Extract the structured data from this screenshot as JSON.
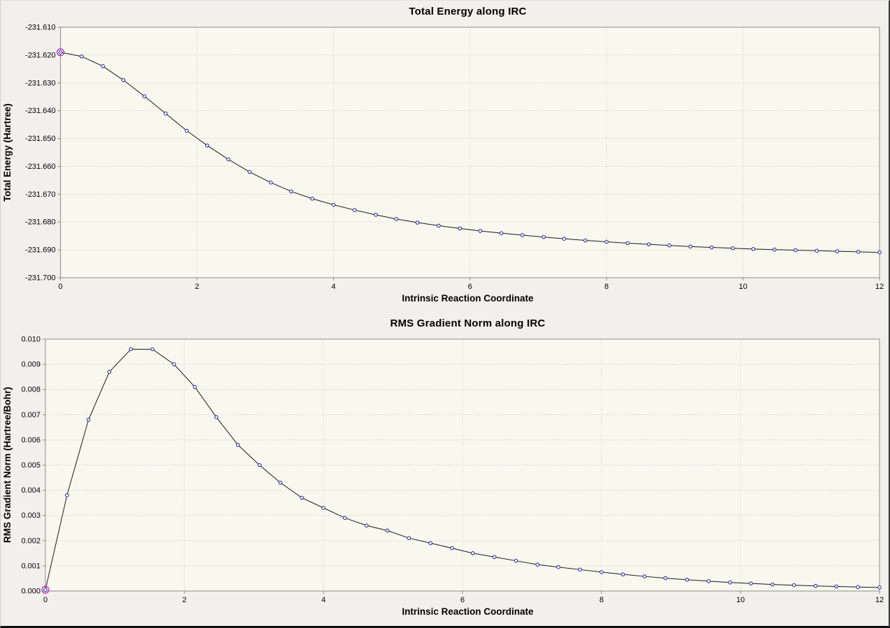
{
  "theme": {
    "window_bg_color": "#f1f0ec",
    "plot_bg_color": "#f9f8ee",
    "grid_color": "#c9c9c9",
    "frame_color": "#8c8c8c",
    "line_color": "#1a1a1a",
    "marker_color": "#2121a0",
    "marker_fill": "#f9f8ee",
    "highlight_color": "#c42ec4",
    "text_color": "#000000"
  },
  "chart_data": [
    {
      "type": "line",
      "title": "Total Energy along IRC",
      "xlabel": "Intrinsic Reaction Coordinate",
      "ylabel": "Total Energy (Hartree)",
      "xlim": [
        0,
        12
      ],
      "ylim": [
        -231.7,
        -231.61
      ],
      "grid": true,
      "legend": null,
      "xtick_values": [
        0,
        2,
        4,
        6,
        8,
        10,
        12
      ],
      "xtick_labels": [
        "0",
        "2",
        "4",
        "6",
        "8",
        "10",
        "12"
      ],
      "ytick_values": [
        -231.61,
        -231.62,
        -231.63,
        -231.64,
        -231.65,
        -231.66,
        -231.67,
        -231.68,
        -231.69,
        -231.7
      ],
      "ytick_labels": [
        "-231.610",
        "-231.620",
        "-231.630",
        "-231.640",
        "-231.650",
        "-231.660",
        "-231.670",
        "-231.680",
        "-231.690",
        "-231.700"
      ],
      "highlight_index": 0,
      "x": [
        0.0,
        0.31,
        0.62,
        0.92,
        1.23,
        1.54,
        1.85,
        2.15,
        2.46,
        2.77,
        3.08,
        3.38,
        3.69,
        4.0,
        4.31,
        4.62,
        4.92,
        5.23,
        5.54,
        5.85,
        6.15,
        6.46,
        6.77,
        7.08,
        7.38,
        7.69,
        8.0,
        8.31,
        8.62,
        8.92,
        9.23,
        9.54,
        9.85,
        10.15,
        10.46,
        10.77,
        11.08,
        11.38,
        11.69,
        12.0
      ],
      "y": [
        -231.619,
        -231.6205,
        -231.624,
        -231.629,
        -231.6348,
        -231.641,
        -231.6472,
        -231.6525,
        -231.6575,
        -231.662,
        -231.6658,
        -231.669,
        -231.6716,
        -231.6738,
        -231.6757,
        -231.6774,
        -231.6789,
        -231.6802,
        -231.6813,
        -231.6823,
        -231.6832,
        -231.684,
        -231.6847,
        -231.6854,
        -231.686,
        -231.6866,
        -231.6871,
        -231.6876,
        -231.688,
        -231.6884,
        -231.6888,
        -231.6891,
        -231.6894,
        -231.6897,
        -231.6899,
        -231.6901,
        -231.6903,
        -231.6905,
        -231.6907,
        -231.6909
      ]
    },
    {
      "type": "line",
      "title": "RMS Gradient Norm along IRC",
      "xlabel": "Intrinsic Reaction Coordinate",
      "ylabel": "RMS Gradient Norm (Hartree/Bohr)",
      "xlim": [
        0,
        12
      ],
      "ylim": [
        0.0,
        0.01
      ],
      "grid": true,
      "legend": null,
      "xtick_values": [
        0,
        2,
        4,
        6,
        8,
        10,
        12
      ],
      "xtick_labels": [
        "0",
        "2",
        "4",
        "6",
        "8",
        "10",
        "12"
      ],
      "ytick_values": [
        0.01,
        0.009,
        0.008,
        0.007,
        0.006,
        0.005,
        0.004,
        0.003,
        0.002,
        0.001,
        0.0
      ],
      "ytick_labels": [
        "0.010",
        "0.009",
        "0.008",
        "0.007",
        "0.006",
        "0.005",
        "0.004",
        "0.003",
        "0.002",
        "0.001",
        "0.000"
      ],
      "highlight_index": 0,
      "x": [
        0.0,
        0.31,
        0.62,
        0.92,
        1.23,
        1.54,
        1.85,
        2.15,
        2.46,
        2.77,
        3.08,
        3.38,
        3.69,
        4.0,
        4.31,
        4.62,
        4.92,
        5.23,
        5.54,
        5.85,
        6.15,
        6.46,
        6.77,
        7.08,
        7.38,
        7.69,
        8.0,
        8.31,
        8.62,
        8.92,
        9.23,
        9.54,
        9.85,
        10.15,
        10.46,
        10.77,
        11.08,
        11.38,
        11.69,
        12.0
      ],
      "y": [
        5e-05,
        0.0038,
        0.0068,
        0.0087,
        0.0096,
        0.0096,
        0.009,
        0.0081,
        0.0069,
        0.0058,
        0.005,
        0.0043,
        0.0037,
        0.0033,
        0.0029,
        0.0026,
        0.0024,
        0.0021,
        0.0019,
        0.0017,
        0.0015,
        0.00135,
        0.0012,
        0.00105,
        0.00095,
        0.00085,
        0.00075,
        0.00066,
        0.00058,
        0.00051,
        0.00045,
        0.00039,
        0.00034,
        0.0003,
        0.00026,
        0.00023,
        0.0002,
        0.00018,
        0.00016,
        0.00014
      ]
    }
  ]
}
